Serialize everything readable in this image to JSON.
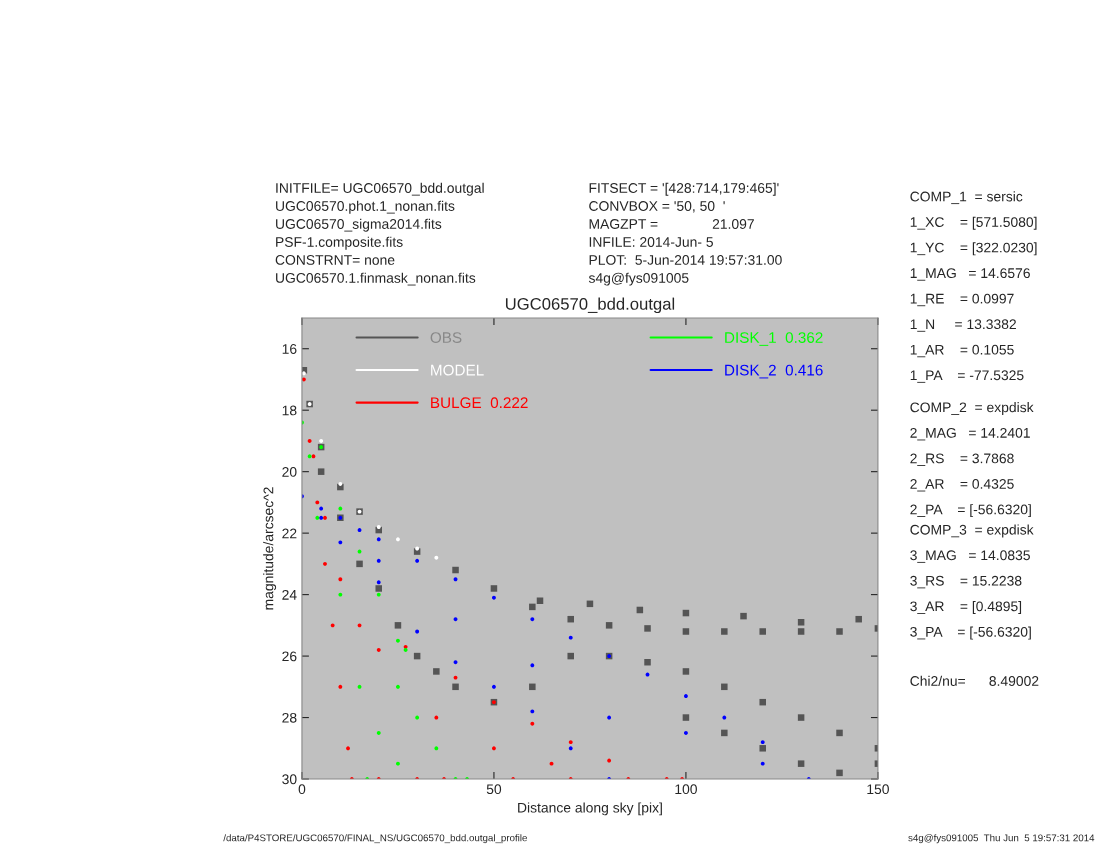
{
  "chart_data": {
    "type": "scatter",
    "title": "UGC06570_bdd.outgal",
    "xlabel": "Distance along sky [pix]",
    "ylabel": "magnitude/arcsec^2",
    "xlim": [
      0,
      150
    ],
    "xticks": [
      0,
      50,
      100,
      150
    ],
    "ylim": [
      30,
      15
    ],
    "yticks": [
      16,
      18,
      20,
      22,
      24,
      26,
      28,
      30
    ],
    "grid": false,
    "legend": "top",
    "series": [
      {
        "name": "OBS",
        "color": "#555555",
        "marker": "square",
        "x": [
          0.5,
          2,
          5,
          10,
          15,
          20,
          30,
          40,
          50,
          60,
          70,
          80,
          90,
          100,
          110,
          120,
          130,
          140,
          150,
          5,
          10,
          15,
          20,
          25,
          30,
          35,
          40,
          50,
          60,
          62,
          75,
          88,
          100,
          115,
          130,
          145,
          70,
          80,
          90,
          100,
          110,
          120,
          130,
          140,
          150,
          100,
          110,
          120,
          130,
          140,
          150
        ],
        "values": [
          16.7,
          17.8,
          19.2,
          20.5,
          21.3,
          21.9,
          22.6,
          23.2,
          23.8,
          24.4,
          24.8,
          25.0,
          25.1,
          25.2,
          25.2,
          25.2,
          25.2,
          25.2,
          25.1,
          20.0,
          21.5,
          23.0,
          23.8,
          25.0,
          26.0,
          26.5,
          27.0,
          27.5,
          27.0,
          24.2,
          24.3,
          24.5,
          24.6,
          24.7,
          24.9,
          24.8,
          26.0,
          26.0,
          26.2,
          26.5,
          27.0,
          27.5,
          28.0,
          28.5,
          29.0,
          28.0,
          28.5,
          29.0,
          29.5,
          29.8,
          29.5
        ]
      },
      {
        "name": "MODEL",
        "color": "#ffffff",
        "marker": "circle",
        "x": [
          0.5,
          2,
          5,
          10,
          15,
          20,
          25,
          30,
          35
        ],
        "values": [
          16.8,
          17.8,
          19.0,
          20.4,
          21.3,
          21.8,
          22.2,
          22.5,
          22.8
        ]
      },
      {
        "name": "BULGE  0.222",
        "color": "#ff0000",
        "marker": "circle",
        "x": [
          0.5,
          2,
          4,
          6,
          8,
          10,
          12,
          13,
          3,
          6,
          10,
          15,
          20,
          27,
          40,
          50,
          60,
          70,
          80,
          99,
          20,
          30,
          37,
          55,
          70,
          85,
          95,
          35,
          50,
          65
        ],
        "values": [
          17.0,
          19.0,
          21.0,
          23.0,
          25.0,
          27.0,
          29.0,
          30.0,
          19.5,
          21.5,
          23.5,
          25.0,
          25.8,
          25.7,
          26.7,
          27.5,
          28.2,
          28.8,
          29.4,
          30.0,
          30.0,
          30.0,
          30.0,
          30.0,
          30.0,
          30.0,
          30.0,
          28.0,
          29.0,
          29.5
        ]
      },
      {
        "name": "DISK_1  0.362",
        "color": "#00ff00",
        "marker": "circle",
        "x": [
          0,
          2,
          4,
          10,
          15,
          17,
          5,
          10,
          15,
          20,
          25,
          27,
          25,
          30,
          35,
          40,
          43,
          20,
          25
        ],
        "values": [
          18.4,
          19.5,
          21.5,
          24.0,
          27.0,
          30.0,
          19.2,
          21.2,
          22.6,
          24.0,
          25.5,
          25.8,
          27.0,
          28.0,
          29.0,
          30.0,
          30.0,
          28.5,
          29.5
        ]
      },
      {
        "name": "DISK_2  0.416",
        "color": "#0000ff",
        "marker": "circle",
        "x": [
          0,
          5,
          10,
          15,
          20,
          30,
          40,
          50,
          60,
          70,
          80,
          90,
          100,
          110,
          120,
          132,
          5,
          10,
          20,
          30,
          40,
          50,
          60,
          70,
          80,
          20,
          40,
          60,
          80,
          100,
          120
        ],
        "values": [
          20.8,
          21.2,
          21.5,
          21.9,
          22.2,
          22.9,
          23.5,
          24.1,
          24.8,
          25.4,
          26.0,
          26.6,
          27.3,
          28.0,
          28.8,
          30.0,
          21.5,
          22.3,
          23.6,
          25.2,
          26.2,
          27.0,
          27.8,
          29.0,
          30.0,
          22.9,
          24.8,
          26.3,
          28.0,
          28.5,
          29.5
        ]
      }
    ],
    "annotations": [
      "INITFILE= UGC06570_bdd.outgal\nUGC06570.phot.1_nonan.fits\nUGC06570_sigma2014.fits\nPSF-1.composite.fits\nCONSTRNT= none\nUGC06570.1.finmask_nonan.fits",
      "FITSECT = '[428:714,179:465]'\nCONVBOX = '50, 50  '\nMAGZPT =              21.097\nINFILE: 2014-Jun- 5\nPLOT:  5-Jun-2014 19:57:31.00\ns4g@fys091005",
      "COMP_1  = sersic\n1_XC    = [571.5080]\n1_YC    = [322.0230]\n1_MAG   = 14.6576\n1_RE    = 0.0997\n1_N     = 13.3382\n1_AR    = 0.1055\n1_PA    = -77.5325",
      "COMP_2  = expdisk\n2_MAG   = 14.2401\n2_RS    = 3.7868\n2_AR    = 0.4325\n2_PA    = [-56.6320]",
      "COMP_3  = expdisk\n3_MAG   = 14.0835\n3_RS    = 15.2238\n3_AR    = [0.4895]\n3_PA    = [-56.6320]",
      "Chi2/nu=      8.49002",
      "/data/P4STORE/UGC06570/FINAL_NS/UGC06570_bdd.outgal_profile",
      "s4g@fys091005  Thu Jun  5 19:57:31 2014"
    ]
  }
}
